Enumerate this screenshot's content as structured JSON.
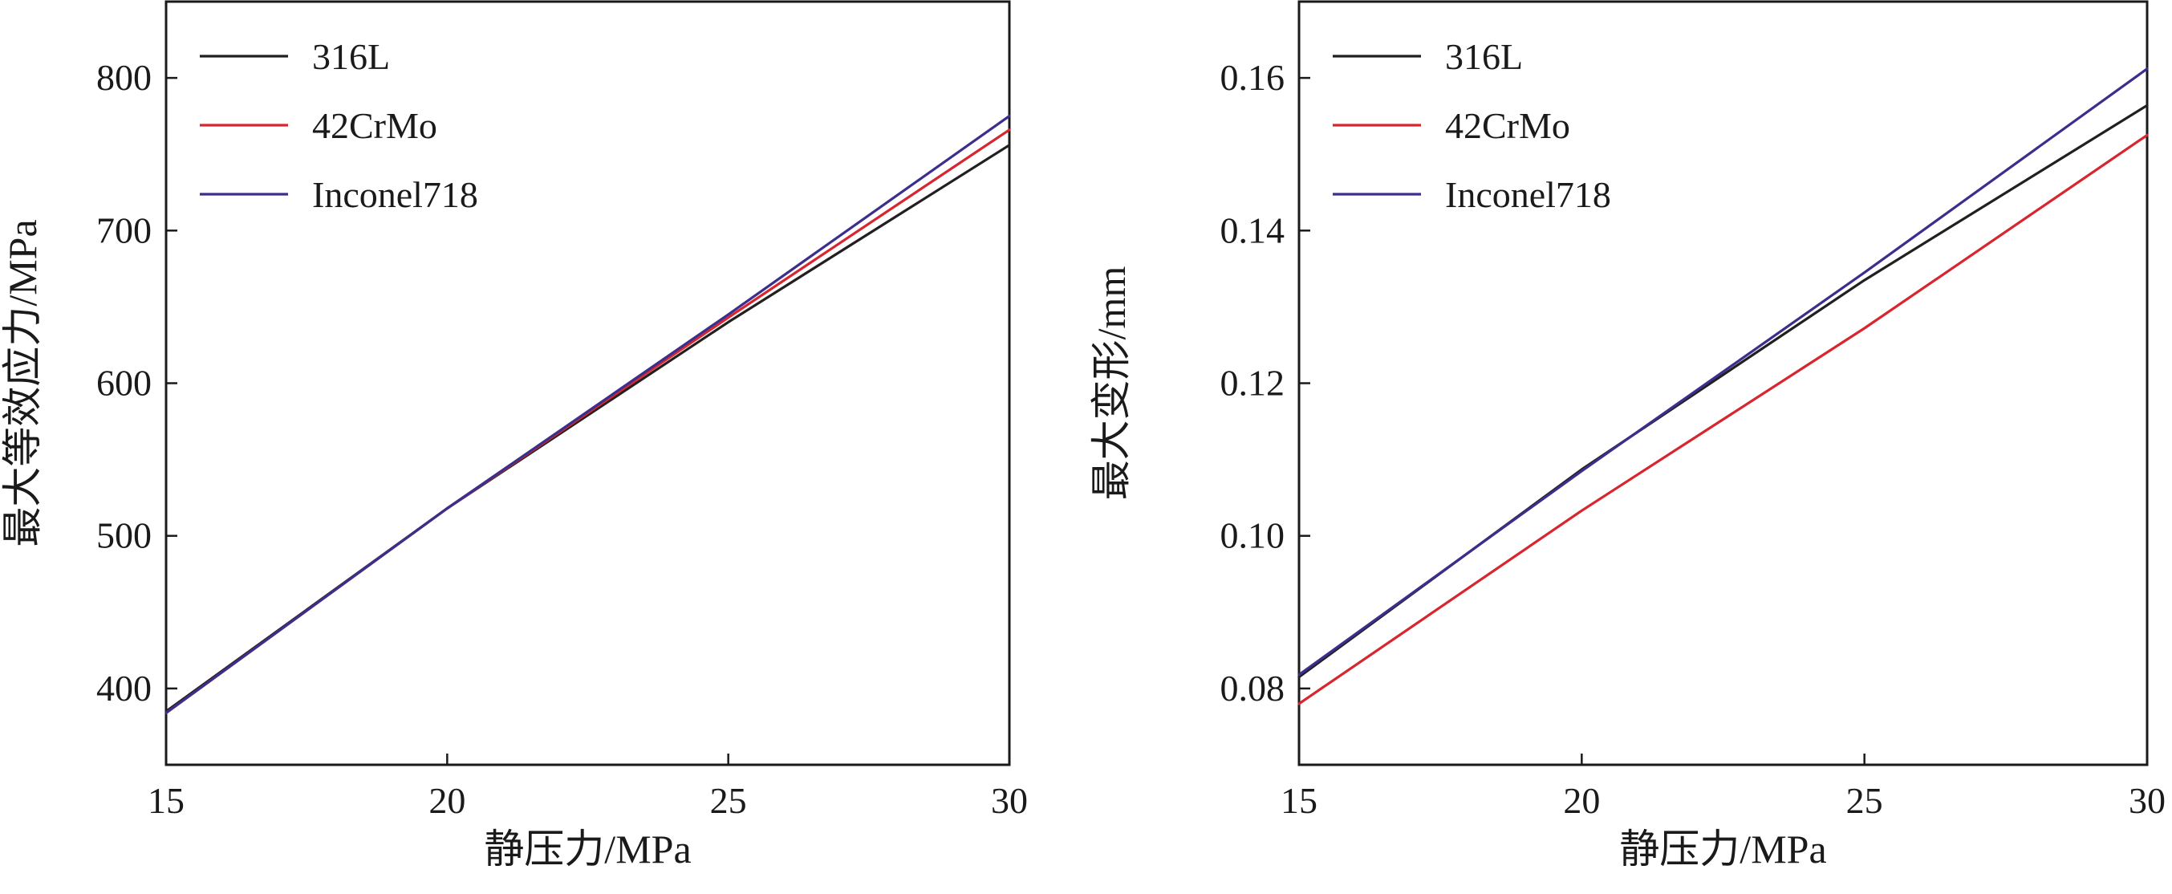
{
  "chart_data": [
    {
      "type": "line",
      "xlabel": "静压力/MPa",
      "ylabel": "最大等效应力/MPa",
      "xlim": [
        15,
        30
      ],
      "ylim": [
        350,
        850
      ],
      "xticks": [
        15,
        20,
        25,
        30
      ],
      "yticks": [
        400,
        500,
        600,
        700,
        800
      ],
      "grid": false,
      "legend_position": "top-left",
      "series": [
        {
          "name": "316L",
          "color": "#231f20",
          "x": [
            15,
            20,
            25,
            30
          ],
          "y": [
            385,
            518,
            640,
            756
          ]
        },
        {
          "name": "42CrMo",
          "color": "#d7262e",
          "x": [
            15,
            20,
            25,
            30
          ],
          "y": [
            384,
            518,
            643,
            766
          ]
        },
        {
          "name": "Inconel718",
          "color": "#3b2e8c",
          "x": [
            15,
            20,
            25,
            30
          ],
          "y": [
            384,
            518,
            645,
            775
          ]
        }
      ]
    },
    {
      "type": "line",
      "xlabel": "静压力/MPa",
      "ylabel": "最大变形/mm",
      "xlim": [
        15,
        30
      ],
      "ylim": [
        0.07,
        0.17
      ],
      "xticks": [
        15,
        20,
        25,
        30
      ],
      "yticks": [
        0.08,
        0.1,
        0.12,
        0.14,
        0.16
      ],
      "ytick_decimals": 2,
      "grid": false,
      "legend_position": "top-left",
      "series": [
        {
          "name": "316L",
          "color": "#231f20",
          "x": [
            15,
            20,
            25,
            30
          ],
          "y": [
            0.0815,
            0.1087,
            0.1335,
            0.1564
          ]
        },
        {
          "name": "42CrMo",
          "color": "#d7262e",
          "x": [
            15,
            20,
            25,
            30
          ],
          "y": [
            0.078,
            0.1033,
            0.1272,
            0.1525
          ]
        },
        {
          "name": "Inconel718",
          "color": "#3b2e8c",
          "x": [
            15,
            20,
            25,
            30
          ],
          "y": [
            0.0818,
            0.1085,
            0.1345,
            0.1612
          ]
        }
      ]
    }
  ]
}
